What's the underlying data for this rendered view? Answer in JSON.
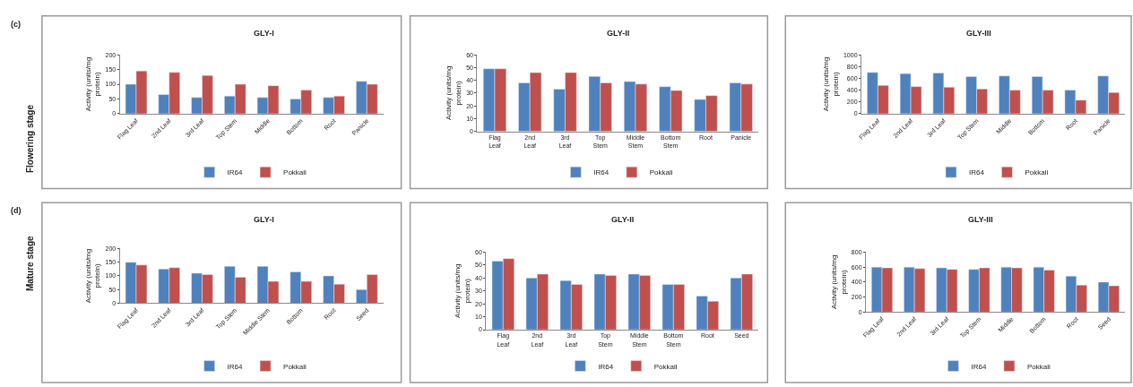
{
  "chart_data": [
    {
      "type": "bar",
      "title": "GLY-I",
      "ylabel": "Activity (units/mg protein)",
      "annotations": [
        "(c)",
        "Flowering stage"
      ],
      "categories": [
        "Flag Leaf",
        "2nd Leaf",
        "3rd Leaf",
        "Top Stem",
        "Middle",
        "Bottom",
        "Root",
        "Panicle"
      ],
      "series": [
        {
          "name": "IR64",
          "color": "#4f81bd",
          "values": [
            100,
            65,
            55,
            60,
            55,
            50,
            55,
            110
          ]
        },
        {
          "name": "Pokkali",
          "color": "#c0504d",
          "values": [
            145,
            140,
            130,
            100,
            95,
            80,
            60,
            100
          ]
        }
      ],
      "ylim": [
        0,
        200
      ],
      "yticks": [
        0,
        50,
        100,
        150,
        200
      ],
      "legend": "bottom",
      "grid": false
    },
    {
      "type": "bar",
      "title": "GLY-II",
      "ylabel": "Activity (units/mg protein)",
      "categories": [
        "Flag Leaf",
        "2nd Leaf",
        "3rd Leaf",
        "Top Stem",
        "Middle Stem",
        "Bottom Stem",
        "Root",
        "Panicle"
      ],
      "series": [
        {
          "name": "IR64",
          "color": "#4f81bd",
          "values": [
            49,
            38,
            33,
            43,
            39,
            35,
            25,
            38
          ]
        },
        {
          "name": "Pokkali",
          "color": "#c0504d",
          "values": [
            49,
            46,
            46,
            38,
            37,
            32,
            28,
            37
          ]
        }
      ],
      "ylim": [
        0,
        60
      ],
      "yticks": [
        0,
        10,
        20,
        30,
        40,
        50,
        60
      ],
      "legend": "bottom",
      "grid": false
    },
    {
      "type": "bar",
      "title": "GLY-III",
      "ylabel": "Activity (units/mg protein)",
      "categories": [
        "Flag Leaf",
        "2nd Leaf",
        "3rd Leaf",
        "Top Stem",
        "Middle",
        "Bottom",
        "Root",
        "Panicle"
      ],
      "series": [
        {
          "name": "IR64",
          "color": "#4f81bd",
          "values": [
            700,
            680,
            690,
            630,
            640,
            630,
            400,
            640
          ]
        },
        {
          "name": "Pokkali",
          "color": "#c0504d",
          "values": [
            480,
            460,
            450,
            420,
            400,
            400,
            230,
            360
          ]
        }
      ],
      "ylim": [
        0,
        1000
      ],
      "yticks": [
        0,
        200,
        400,
        600,
        800,
        1000
      ],
      "legend": "bottom",
      "grid": false
    },
    {
      "type": "bar",
      "title": "GLY-I",
      "ylabel": "Activity (units/mg protein)",
      "annotations": [
        "(d)",
        "Mature stage"
      ],
      "categories": [
        "Flag Leaf",
        "2nd Leaf",
        "3rd Leaf",
        "Top Stem",
        "Middle Stem",
        "Bottom",
        "Root",
        "Seed"
      ],
      "series": [
        {
          "name": "IR64",
          "color": "#4f81bd",
          "values": [
            150,
            125,
            110,
            135,
            135,
            115,
            100,
            50
          ]
        },
        {
          "name": "Pokkali",
          "color": "#c0504d",
          "values": [
            140,
            130,
            105,
            95,
            80,
            80,
            70,
            105
          ]
        }
      ],
      "ylim": [
        0,
        200
      ],
      "yticks": [
        0,
        50,
        100,
        150,
        200
      ],
      "legend": "bottom",
      "grid": false
    },
    {
      "type": "bar",
      "title": "GLY-II",
      "ylabel": "Activity (units/mg protein)",
      "categories": [
        "Flag Leaf",
        "2nd Leaf",
        "3rd Leaf",
        "Top Stem",
        "Middle Stem",
        "Bottom Stem",
        "Root",
        "Seed"
      ],
      "series": [
        {
          "name": "IR64",
          "color": "#4f81bd",
          "values": [
            53,
            40,
            38,
            43,
            43,
            35,
            26,
            40
          ]
        },
        {
          "name": "Pokkali",
          "color": "#c0504d",
          "values": [
            55,
            43,
            35,
            42,
            42,
            35,
            22,
            43
          ]
        }
      ],
      "ylim": [
        0,
        60
      ],
      "yticks": [
        0,
        10,
        20,
        30,
        40,
        50,
        60
      ],
      "legend": "bottom",
      "grid": false
    },
    {
      "type": "bar",
      "title": "GLY-III",
      "ylabel": "Activity (units/mg protein)",
      "categories": [
        "Flag Leaf",
        "2nd Leaf",
        "3rd Leaf",
        "Top Stem",
        "Middle",
        "Bottom",
        "Root",
        "Seed"
      ],
      "series": [
        {
          "name": "IR64",
          "color": "#4f81bd",
          "values": [
            600,
            600,
            590,
            570,
            600,
            600,
            480,
            400
          ]
        },
        {
          "name": "Pokkali",
          "color": "#c0504d",
          "values": [
            590,
            580,
            570,
            590,
            590,
            560,
            360,
            350
          ]
        }
      ],
      "ylim": [
        0,
        800
      ],
      "yticks": [
        0,
        200,
        400,
        600,
        800
      ],
      "legend": "bottom",
      "grid": false
    }
  ]
}
